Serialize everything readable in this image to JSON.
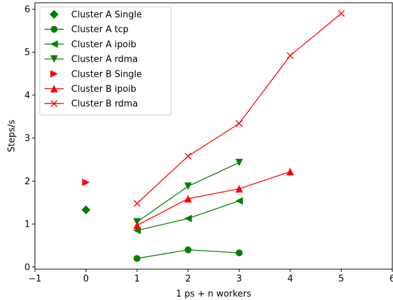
{
  "chart_data": {
    "type": "line",
    "xlabel": "1 ps + n workers",
    "ylabel": "Steps/s",
    "xlim": [
      -1,
      6
    ],
    "ylim": [
      -0.05,
      6.15
    ],
    "xticks": [
      -1,
      0,
      1,
      2,
      3,
      4,
      5,
      6
    ],
    "yticks": [
      0,
      1,
      2,
      3,
      4,
      5,
      6
    ],
    "grid": false,
    "legend_position": "top-left",
    "series": [
      {
        "name": "Cluster A Single",
        "color": "#008000",
        "marker": "diamond",
        "line": false,
        "points": [
          [
            0,
            1.33
          ]
        ]
      },
      {
        "name": "Cluster A tcp",
        "color": "#008000",
        "marker": "circle",
        "line": true,
        "points": [
          [
            1,
            0.2
          ],
          [
            2,
            0.4
          ],
          [
            3,
            0.33
          ]
        ]
      },
      {
        "name": "Cluster A ipoib",
        "color": "#008000",
        "marker": "triangle-left",
        "line": true,
        "points": [
          [
            1,
            0.85
          ],
          [
            2,
            1.13
          ],
          [
            3,
            1.54
          ]
        ]
      },
      {
        "name": "Cluster A rdma",
        "color": "#008000",
        "marker": "triangle-down",
        "line": true,
        "points": [
          [
            1,
            1.05
          ],
          [
            2,
            1.88
          ],
          [
            3,
            2.43
          ]
        ]
      },
      {
        "name": "Cluster B Single",
        "color": "#ff0000",
        "marker": "triangle-right",
        "line": false,
        "points": [
          [
            0,
            1.97
          ]
        ]
      },
      {
        "name": "Cluster B ipoib",
        "color": "#ff0000",
        "marker": "triangle-up",
        "line": true,
        "points": [
          [
            1,
            0.97
          ],
          [
            2,
            1.59
          ],
          [
            3,
            1.82
          ],
          [
            4,
            2.22
          ]
        ]
      },
      {
        "name": "Cluster B rdma",
        "color": "#ff0000",
        "marker": "x",
        "line": true,
        "points": [
          [
            1,
            1.48
          ],
          [
            2,
            2.58
          ],
          [
            3,
            3.34
          ],
          [
            4,
            4.92
          ],
          [
            5,
            5.9
          ]
        ]
      }
    ]
  }
}
